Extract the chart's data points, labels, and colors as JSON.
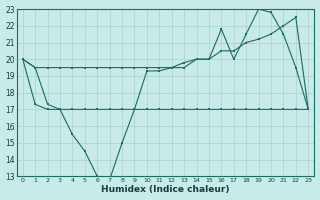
{
  "xlabel": "Humidex (Indice chaleur)",
  "background_color": "#c8eae8",
  "line_color": "#1a6b60",
  "grid_color": "#aacfcc",
  "xlim": [
    -0.5,
    23.5
  ],
  "ylim": [
    13,
    23
  ],
  "xticks": [
    0,
    1,
    2,
    3,
    4,
    5,
    6,
    7,
    8,
    9,
    10,
    11,
    12,
    13,
    14,
    15,
    16,
    17,
    18,
    19,
    20,
    21,
    22,
    23
  ],
  "yticks": [
    13,
    14,
    15,
    16,
    17,
    18,
    19,
    20,
    21,
    22,
    23
  ],
  "s1_x": [
    0,
    1,
    2,
    3,
    4,
    5,
    6,
    7,
    8,
    9,
    10,
    11,
    12,
    13,
    14,
    15,
    16,
    17,
    18,
    19,
    20,
    21,
    22,
    23
  ],
  "s1_y": [
    20,
    19.5,
    19.5,
    19.5,
    19.5,
    19.5,
    19.5,
    19.5,
    19.5,
    19.5,
    19.5,
    19.5,
    19.5,
    19.5,
    20,
    20,
    20.5,
    20.5,
    21,
    21.2,
    21.5,
    22,
    22.5,
    17
  ],
  "s2_x": [
    0,
    1,
    2,
    3,
    4,
    5,
    6,
    7,
    8,
    9,
    10,
    11,
    12,
    13,
    14,
    15,
    16,
    17,
    18,
    19,
    20,
    21,
    22,
    23
  ],
  "s2_y": [
    20,
    17.3,
    17,
    17,
    17,
    17,
    17,
    17,
    17,
    17,
    17,
    17,
    17,
    17,
    17,
    17,
    17,
    17,
    17,
    17,
    17,
    17,
    17,
    17
  ],
  "s3_x": [
    0,
    1,
    2,
    3,
    4,
    5,
    6,
    7,
    8,
    9,
    10,
    11,
    12,
    13,
    14,
    15,
    16,
    17,
    18,
    19,
    20,
    21,
    22,
    23
  ],
  "s3_y": [
    20,
    19.5,
    17.3,
    17,
    15.5,
    14.5,
    13,
    12.8,
    15,
    17,
    19.3,
    19.3,
    19.5,
    19.8,
    20,
    20,
    21.8,
    20,
    21.5,
    23,
    22.8,
    21.5,
    19.5,
    17
  ]
}
